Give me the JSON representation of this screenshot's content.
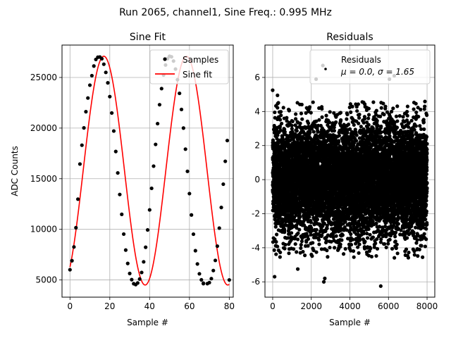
{
  "figure": {
    "suptitle": "Run 2065, channel1, Sine Freq.: 0.995 MHz"
  },
  "colors": {
    "samples": "#000000",
    "fit": "#ff0000",
    "residuals": "#000000",
    "grid": "#b0b0b0"
  },
  "chart_data": [
    {
      "type": "line",
      "title": "Sine Fit",
      "xlabel": "Sample #",
      "ylabel": "ADC Counts",
      "xlim": [
        -4,
        82
      ],
      "ylim": [
        3300,
        28200
      ],
      "xticks": [
        0,
        20,
        40,
        60,
        80
      ],
      "yticks": [
        5000,
        10000,
        15000,
        20000,
        25000
      ],
      "grid": true,
      "legend_position": "top-right",
      "series": [
        {
          "name": "Samples",
          "kind": "scatter",
          "color": "#000000",
          "x": [
            0,
            1,
            2,
            3,
            4,
            5,
            6,
            7,
            8,
            9,
            10,
            11,
            12,
            13,
            14,
            15,
            16,
            17,
            18,
            19,
            20,
            21,
            22,
            23,
            24,
            25,
            26,
            27,
            28,
            29,
            30,
            31,
            32,
            33,
            34,
            35,
            36,
            37,
            38,
            39,
            40,
            41,
            42,
            43,
            44,
            45,
            46,
            47,
            48,
            49,
            50,
            51,
            52,
            53,
            54,
            55,
            56,
            57,
            58,
            59,
            60,
            61,
            62,
            63,
            64,
            65,
            66,
            67,
            67,
            69,
            70,
            71,
            72,
            73,
            74,
            75,
            76,
            77,
            78,
            79,
            80
          ],
          "y": [
            6010,
            6900,
            8260,
            10160,
            12980,
            16450,
            18310,
            20020,
            21620,
            22970,
            24240,
            25180,
            26130,
            26780,
            27000,
            27020,
            26850,
            26310,
            25500,
            24470,
            23110,
            21490,
            19710,
            17690,
            15570,
            13440,
            11480,
            9530,
            7950,
            6630,
            5640,
            5030,
            4630,
            4540,
            4700,
            5090,
            5740,
            6790,
            8230,
            9940,
            11920,
            14050,
            16240,
            18390,
            20440,
            22310,
            23900,
            25240,
            26230,
            26860,
            27100,
            27040,
            26620,
            25830,
            24780,
            23430,
            21840,
            20000,
            17920,
            15730,
            13530,
            11420,
            9520,
            7890,
            6580,
            5610,
            5010,
            4680,
            4640,
            4640,
            4740,
            5130,
            5930,
            6930,
            8340,
            10120,
            12160,
            14460,
            16720,
            18770,
            5000
          ]
        },
        {
          "name": "Sine fit",
          "kind": "line",
          "color": "#ff0000",
          "model": {
            "amplitude": 11300,
            "offset": 15800,
            "period": 41.5,
            "peak_at": 17.0,
            "x_range": [
              0,
              80
            ]
          }
        }
      ]
    },
    {
      "type": "scatter",
      "title": "Residuals",
      "xlabel": "Sample #",
      "ylabel": "",
      "xlim": [
        -400,
        8400
      ],
      "ylim": [
        -6.9,
        7.9
      ],
      "xticks": [
        0,
        2000,
        4000,
        6000,
        8000
      ],
      "yticks": [
        -6,
        -4,
        -2,
        0,
        2,
        4,
        6
      ],
      "grid": true,
      "legend_position": "top-right",
      "legend_lines": [
        "Residuals",
        "μ = 0.0, σ = 1.65"
      ],
      "series": [
        {
          "name": "Residuals",
          "color": "#000000",
          "mu": 0.0,
          "sigma": 1.65,
          "n_points": 8000,
          "x_range": [
            0,
            8000
          ],
          "notable_points": [
            {
              "x": 0,
              "y": 5.25
            },
            {
              "x": 250,
              "y": 4.95
            },
            {
              "x": 2250,
              "y": 5.9
            },
            {
              "x": 2600,
              "y": 6.7
            },
            {
              "x": 6300,
              "y": 6.1
            },
            {
              "x": 6050,
              "y": 5.9
            },
            {
              "x": 5600,
              "y": -6.25
            },
            {
              "x": 100,
              "y": -5.7
            },
            {
              "x": 2650,
              "y": -6.0
            },
            {
              "x": 2700,
              "y": -5.8
            },
            {
              "x": 1300,
              "y": -5.25
            },
            {
              "x": 7950,
              "y": -3.5
            }
          ]
        }
      ]
    }
  ]
}
